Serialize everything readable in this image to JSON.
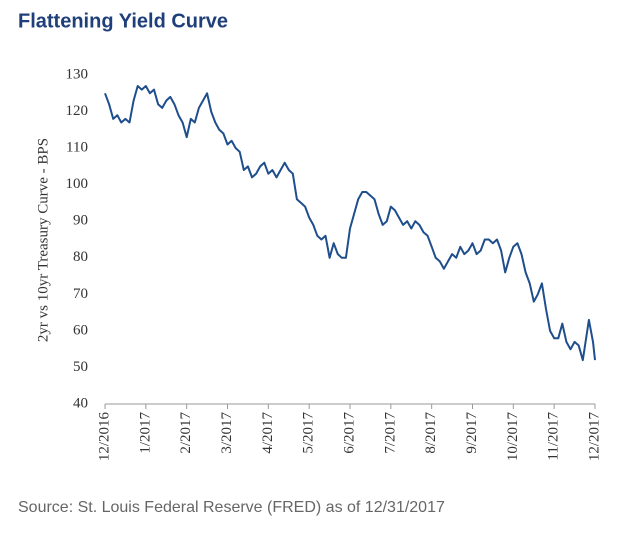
{
  "chart_data": {
    "type": "line",
    "title": "Flattening Yield Curve",
    "y_label": "2yr vs 10yr Treasury Curve - BPS",
    "source": "Source: St. Louis Federal Reserve (FRED) as of 12/31/2017",
    "x": [
      0,
      0.1,
      0.2,
      0.3,
      0.4,
      0.5,
      0.6,
      0.7,
      0.8,
      0.9,
      1.0,
      1.1,
      1.2,
      1.3,
      1.4,
      1.5,
      1.6,
      1.7,
      1.8,
      1.9,
      2.0,
      2.1,
      2.2,
      2.3,
      2.4,
      2.5,
      2.6,
      2.7,
      2.8,
      2.9,
      3.0,
      3.1,
      3.2,
      3.3,
      3.4,
      3.5,
      3.6,
      3.7,
      3.8,
      3.9,
      4.0,
      4.1,
      4.2,
      4.3,
      4.4,
      4.5,
      4.6,
      4.7,
      4.8,
      4.9,
      5.0,
      5.1,
      5.2,
      5.3,
      5.4,
      5.5,
      5.6,
      5.7,
      5.8,
      5.9,
      6.0,
      6.1,
      6.2,
      6.3,
      6.4,
      6.5,
      6.6,
      6.7,
      6.8,
      6.9,
      7.0,
      7.1,
      7.2,
      7.3,
      7.4,
      7.5,
      7.6,
      7.7,
      7.8,
      7.9,
      8.0,
      8.1,
      8.2,
      8.3,
      8.4,
      8.5,
      8.6,
      8.7,
      8.8,
      8.9,
      9.0,
      9.1,
      9.2,
      9.3,
      9.4,
      9.5,
      9.6,
      9.7,
      9.8,
      9.9,
      10.0,
      10.1,
      10.2,
      10.3,
      10.4,
      10.5,
      10.6,
      10.7,
      10.8,
      10.9,
      11.0,
      11.1,
      11.2,
      11.3,
      11.4,
      11.5,
      11.6,
      11.7,
      11.85,
      11.95,
      12.0
    ],
    "series": [
      {
        "name": "2yr vs 10yr Treasury Curve",
        "color": "#1f4e8c",
        "values": [
          125,
          122,
          118,
          119,
          117,
          118,
          117,
          123,
          127,
          126,
          127,
          125,
          126,
          122,
          121,
          123,
          124,
          122,
          119,
          117,
          113,
          118,
          117,
          121,
          123,
          125,
          120,
          117,
          115,
          114,
          111,
          112,
          110,
          109,
          104,
          105,
          102,
          103,
          105,
          106,
          103,
          104,
          102,
          104,
          106,
          104,
          103,
          96,
          95,
          94,
          91,
          89,
          86,
          85,
          86,
          80,
          84,
          81,
          80,
          80,
          88,
          92,
          96,
          98,
          98,
          97,
          96,
          92,
          89,
          90,
          94,
          93,
          91,
          89,
          90,
          88,
          90,
          89,
          87,
          86,
          83,
          80,
          79,
          77,
          79,
          81,
          80,
          83,
          81,
          82,
          84,
          81,
          82,
          85,
          85,
          84,
          85,
          82,
          76,
          80,
          83,
          84,
          81,
          76,
          73,
          68,
          70,
          73,
          66,
          60,
          58,
          58,
          62,
          57,
          55,
          57,
          56,
          52,
          63,
          57,
          52
        ]
      }
    ],
    "xlim": [
      0,
      12
    ],
    "xticks": [
      {
        "value": 0,
        "label": "12/2016"
      },
      {
        "value": 1,
        "label": "1/2017"
      },
      {
        "value": 2,
        "label": "2/2017"
      },
      {
        "value": 3,
        "label": "3/2017"
      },
      {
        "value": 4,
        "label": "4/2017"
      },
      {
        "value": 5,
        "label": "5/2017"
      },
      {
        "value": 6,
        "label": "6/2017"
      },
      {
        "value": 7,
        "label": "7/2017"
      },
      {
        "value": 8,
        "label": "8/2017"
      },
      {
        "value": 9,
        "label": "9/2017"
      },
      {
        "value": 10,
        "label": "10/2017"
      },
      {
        "value": 11,
        "label": "11/2017"
      },
      {
        "value": 12,
        "label": "12/2017"
      }
    ],
    "ylim": [
      40,
      130
    ],
    "yticks": [
      40,
      50,
      60,
      70,
      80,
      90,
      100,
      110,
      120,
      130
    ]
  }
}
